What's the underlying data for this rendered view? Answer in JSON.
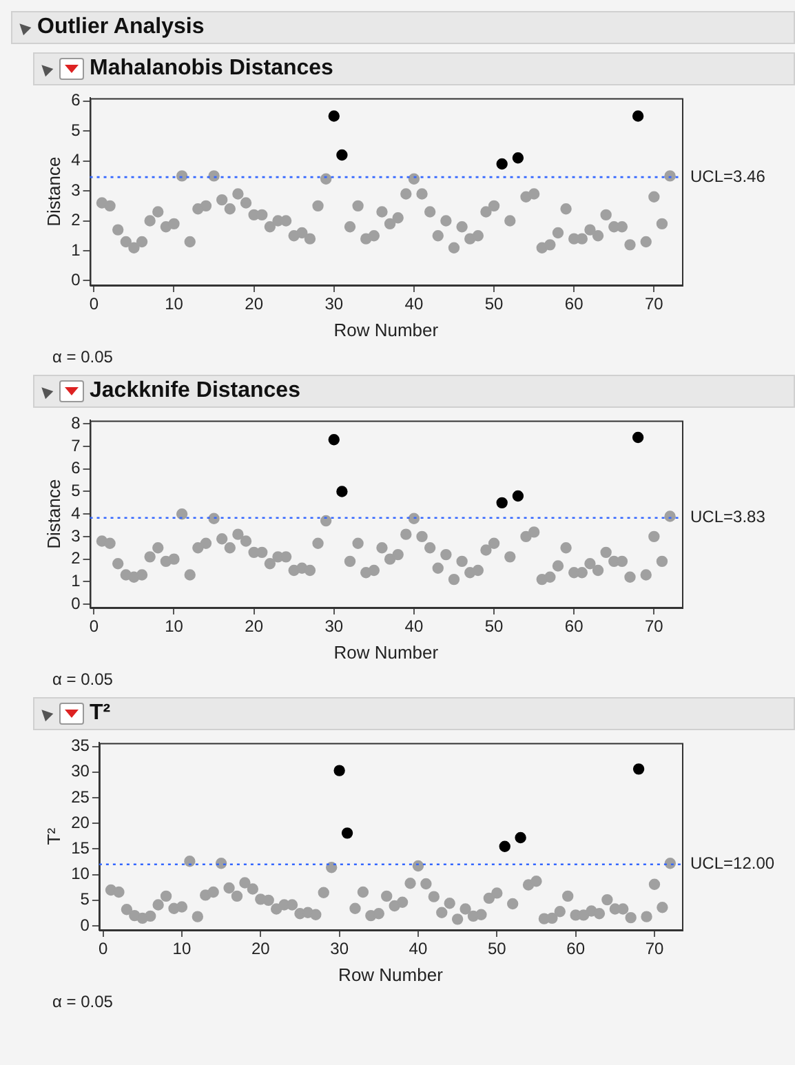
{
  "chart_data": [
    {
      "type": "scatter",
      "title": "Outlier Analysis",
      "subtitle": "Mahalanobis Distances",
      "xlabel": "Row Number",
      "ylabel": "Distance",
      "marker": "circle",
      "legend": false,
      "x": [
        1,
        2,
        3,
        4,
        5,
        6,
        7,
        8,
        9,
        10,
        11,
        12,
        13,
        14,
        15,
        16,
        17,
        18,
        19,
        20,
        21,
        22,
        23,
        24,
        25,
        26,
        27,
        28,
        29,
        30,
        31,
        32,
        33,
        34,
        35,
        36,
        37,
        38,
        39,
        40,
        41,
        42,
        43,
        44,
        45,
        46,
        47,
        48,
        49,
        50,
        51,
        52,
        53,
        54,
        55,
        56,
        57,
        58,
        59,
        60,
        61,
        62,
        63,
        64,
        65,
        66,
        67,
        68,
        69,
        70,
        71,
        72
      ],
      "values": [
        2.6,
        2.5,
        1.7,
        1.3,
        1.1,
        1.3,
        2.0,
        2.3,
        1.8,
        1.9,
        3.5,
        1.3,
        2.4,
        2.5,
        3.5,
        2.7,
        2.4,
        2.9,
        2.6,
        2.2,
        2.2,
        1.8,
        2.0,
        2.0,
        1.5,
        1.6,
        1.4,
        2.5,
        3.4,
        5.5,
        4.2,
        1.8,
        2.5,
        1.4,
        1.5,
        2.3,
        1.9,
        2.1,
        2.9,
        3.4,
        2.9,
        2.3,
        1.5,
        2.0,
        1.1,
        1.8,
        1.4,
        1.5,
        2.3,
        2.5,
        3.9,
        2.0,
        4.1,
        2.8,
        2.9,
        1.1,
        1.2,
        1.6,
        2.4,
        1.4,
        1.4,
        1.7,
        1.5,
        2.2,
        1.8,
        1.8,
        1.2,
        5.5,
        1.3,
        2.8,
        1.9,
        3.5
      ],
      "colors": [
        "#a0a0a0",
        "#a0a0a0",
        "#a0a0a0",
        "#a0a0a0",
        "#a0a0a0",
        "#a0a0a0",
        "#a0a0a0",
        "#a0a0a0",
        "#a0a0a0",
        "#a0a0a0",
        "#a0a0a0",
        "#a0a0a0",
        "#a0a0a0",
        "#a0a0a0",
        "#a0a0a0",
        "#a0a0a0",
        "#a0a0a0",
        "#a0a0a0",
        "#a0a0a0",
        "#a0a0a0",
        "#a0a0a0",
        "#a0a0a0",
        "#a0a0a0",
        "#a0a0a0",
        "#a0a0a0",
        "#a0a0a0",
        "#a0a0a0",
        "#a0a0a0",
        "#a0a0a0",
        "#000000",
        "#000000",
        "#a0a0a0",
        "#a0a0a0",
        "#a0a0a0",
        "#a0a0a0",
        "#a0a0a0",
        "#a0a0a0",
        "#a0a0a0",
        "#a0a0a0",
        "#a0a0a0",
        "#a0a0a0",
        "#a0a0a0",
        "#a0a0a0",
        "#a0a0a0",
        "#a0a0a0",
        "#a0a0a0",
        "#a0a0a0",
        "#a0a0a0",
        "#a0a0a0",
        "#a0a0a0",
        "#000000",
        "#a0a0a0",
        "#000000",
        "#a0a0a0",
        "#a0a0a0",
        "#a0a0a0",
        "#a0a0a0",
        "#a0a0a0",
        "#a0a0a0",
        "#a0a0a0",
        "#a0a0a0",
        "#a0a0a0",
        "#a0a0a0",
        "#a0a0a0",
        "#a0a0a0",
        "#a0a0a0",
        "#a0a0a0",
        "#000000",
        "#a0a0a0",
        "#a0a0a0",
        "#a0a0a0",
        "#a0a0a0"
      ],
      "xlim": [
        -0.5,
        73.5
      ],
      "xticks": [
        0,
        10,
        20,
        30,
        40,
        50,
        60,
        70
      ],
      "ylim": [
        -0.15,
        6.1
      ],
      "yticks": [
        0,
        1,
        2,
        3,
        4,
        5,
        6
      ],
      "ref_lines": [
        {
          "axis": "y",
          "value": 3.46,
          "label": "UCL=3.46",
          "color": "#3366ff",
          "line_style": "dotted"
        }
      ],
      "annotations": [
        "α = 0.05"
      ]
    },
    {
      "type": "scatter",
      "title": "Jackknife Distances",
      "xlabel": "Row Number",
      "ylabel": "Distance",
      "marker": "circle",
      "legend": false,
      "x": [
        1,
        2,
        3,
        4,
        5,
        6,
        7,
        8,
        9,
        10,
        11,
        12,
        13,
        14,
        15,
        16,
        17,
        18,
        19,
        20,
        21,
        22,
        23,
        24,
        25,
        26,
        27,
        28,
        29,
        30,
        31,
        32,
        33,
        34,
        35,
        36,
        37,
        38,
        39,
        40,
        41,
        42,
        43,
        44,
        45,
        46,
        47,
        48,
        49,
        50,
        51,
        52,
        53,
        54,
        55,
        56,
        57,
        58,
        59,
        60,
        61,
        62,
        63,
        64,
        65,
        66,
        67,
        68,
        69,
        70,
        71,
        72
      ],
      "values": [
        2.8,
        2.7,
        1.8,
        1.3,
        1.2,
        1.3,
        2.1,
        2.5,
        1.9,
        2.0,
        4.0,
        1.3,
        2.5,
        2.7,
        3.8,
        2.9,
        2.5,
        3.1,
        2.8,
        2.3,
        2.3,
        1.8,
        2.1,
        2.1,
        1.5,
        1.6,
        1.5,
        2.7,
        3.7,
        7.3,
        5.0,
        1.9,
        2.7,
        1.4,
        1.5,
        2.5,
        2.0,
        2.2,
        3.1,
        3.8,
        3.0,
        2.5,
        1.6,
        2.2,
        1.1,
        1.9,
        1.4,
        1.5,
        2.4,
        2.7,
        4.5,
        2.1,
        4.8,
        3.0,
        3.2,
        1.1,
        1.2,
        1.7,
        2.5,
        1.4,
        1.4,
        1.8,
        1.5,
        2.3,
        1.9,
        1.9,
        1.2,
        7.4,
        1.3,
        3.0,
        1.9,
        3.9
      ],
      "colors": [
        "#a0a0a0",
        "#a0a0a0",
        "#a0a0a0",
        "#a0a0a0",
        "#a0a0a0",
        "#a0a0a0",
        "#a0a0a0",
        "#a0a0a0",
        "#a0a0a0",
        "#a0a0a0",
        "#a0a0a0",
        "#a0a0a0",
        "#a0a0a0",
        "#a0a0a0",
        "#a0a0a0",
        "#a0a0a0",
        "#a0a0a0",
        "#a0a0a0",
        "#a0a0a0",
        "#a0a0a0",
        "#a0a0a0",
        "#a0a0a0",
        "#a0a0a0",
        "#a0a0a0",
        "#a0a0a0",
        "#a0a0a0",
        "#a0a0a0",
        "#a0a0a0",
        "#a0a0a0",
        "#000000",
        "#000000",
        "#a0a0a0",
        "#a0a0a0",
        "#a0a0a0",
        "#a0a0a0",
        "#a0a0a0",
        "#a0a0a0",
        "#a0a0a0",
        "#a0a0a0",
        "#a0a0a0",
        "#a0a0a0",
        "#a0a0a0",
        "#a0a0a0",
        "#a0a0a0",
        "#a0a0a0",
        "#a0a0a0",
        "#a0a0a0",
        "#a0a0a0",
        "#a0a0a0",
        "#a0a0a0",
        "#000000",
        "#a0a0a0",
        "#000000",
        "#a0a0a0",
        "#a0a0a0",
        "#a0a0a0",
        "#a0a0a0",
        "#a0a0a0",
        "#a0a0a0",
        "#a0a0a0",
        "#a0a0a0",
        "#a0a0a0",
        "#a0a0a0",
        "#a0a0a0",
        "#a0a0a0",
        "#a0a0a0",
        "#a0a0a0",
        "#000000",
        "#a0a0a0",
        "#a0a0a0",
        "#a0a0a0",
        "#a0a0a0"
      ],
      "xlim": [
        -0.5,
        73.5
      ],
      "xticks": [
        0,
        10,
        20,
        30,
        40,
        50,
        60,
        70
      ],
      "ylim": [
        -0.15,
        8.15
      ],
      "yticks": [
        0,
        1,
        2,
        3,
        4,
        5,
        6,
        7,
        8
      ],
      "ref_lines": [
        {
          "axis": "y",
          "value": 3.83,
          "label": "UCL=3.83",
          "color": "#3366ff",
          "line_style": "dotted"
        }
      ],
      "annotations": [
        "α = 0.05"
      ]
    },
    {
      "type": "scatter",
      "title": "T²",
      "xlabel": "Row Number",
      "ylabel": "T²",
      "marker": "circle",
      "legend": false,
      "x": [
        1,
        2,
        3,
        4,
        5,
        6,
        7,
        8,
        9,
        10,
        11,
        12,
        13,
        14,
        15,
        16,
        17,
        18,
        19,
        20,
        21,
        22,
        23,
        24,
        25,
        26,
        27,
        28,
        29,
        30,
        31,
        32,
        33,
        34,
        35,
        36,
        37,
        38,
        39,
        40,
        41,
        42,
        43,
        44,
        45,
        46,
        47,
        48,
        49,
        50,
        51,
        52,
        53,
        54,
        55,
        56,
        57,
        58,
        59,
        60,
        61,
        62,
        63,
        64,
        65,
        66,
        67,
        68,
        69,
        70,
        71,
        72
      ],
      "values": [
        7.0,
        6.6,
        3.2,
        2.0,
        1.5,
        1.9,
        4.1,
        5.8,
        3.4,
        3.7,
        12.6,
        1.8,
        6.0,
        6.6,
        12.2,
        7.4,
        5.8,
        8.4,
        7.2,
        5.2,
        5.0,
        3.3,
        4.1,
        4.1,
        2.4,
        2.6,
        2.2,
        6.5,
        11.4,
        30.3,
        18.1,
        3.4,
        6.6,
        2.0,
        2.4,
        5.8,
        3.9,
        4.6,
        8.3,
        11.7,
        8.2,
        5.7,
        2.6,
        4.4,
        1.3,
        3.3,
        1.9,
        2.2,
        5.4,
        6.4,
        15.5,
        4.3,
        17.2,
        8.0,
        8.7,
        1.4,
        1.5,
        2.8,
        5.8,
        2.1,
        2.1,
        2.9,
        2.4,
        5.1,
        3.3,
        3.3,
        1.6,
        30.6,
        1.8,
        8.1,
        3.6,
        12.2
      ],
      "colors": [
        "#a0a0a0",
        "#a0a0a0",
        "#a0a0a0",
        "#a0a0a0",
        "#a0a0a0",
        "#a0a0a0",
        "#a0a0a0",
        "#a0a0a0",
        "#a0a0a0",
        "#a0a0a0",
        "#a0a0a0",
        "#a0a0a0",
        "#a0a0a0",
        "#a0a0a0",
        "#a0a0a0",
        "#a0a0a0",
        "#a0a0a0",
        "#a0a0a0",
        "#a0a0a0",
        "#a0a0a0",
        "#a0a0a0",
        "#a0a0a0",
        "#a0a0a0",
        "#a0a0a0",
        "#a0a0a0",
        "#a0a0a0",
        "#a0a0a0",
        "#a0a0a0",
        "#a0a0a0",
        "#000000",
        "#000000",
        "#a0a0a0",
        "#a0a0a0",
        "#a0a0a0",
        "#a0a0a0",
        "#a0a0a0",
        "#a0a0a0",
        "#a0a0a0",
        "#a0a0a0",
        "#a0a0a0",
        "#a0a0a0",
        "#a0a0a0",
        "#a0a0a0",
        "#a0a0a0",
        "#a0a0a0",
        "#a0a0a0",
        "#a0a0a0",
        "#a0a0a0",
        "#a0a0a0",
        "#a0a0a0",
        "#000000",
        "#a0a0a0",
        "#000000",
        "#a0a0a0",
        "#a0a0a0",
        "#a0a0a0",
        "#a0a0a0",
        "#a0a0a0",
        "#a0a0a0",
        "#a0a0a0",
        "#a0a0a0",
        "#a0a0a0",
        "#a0a0a0",
        "#a0a0a0",
        "#a0a0a0",
        "#a0a0a0",
        "#a0a0a0",
        "#000000",
        "#a0a0a0",
        "#a0a0a0",
        "#a0a0a0",
        "#a0a0a0"
      ],
      "xlim": [
        -0.5,
        73.5
      ],
      "xticks": [
        0,
        10,
        20,
        30,
        40,
        50,
        60,
        70
      ],
      "ylim": [
        -0.8,
        35.7
      ],
      "yticks": [
        0,
        5,
        10,
        15,
        20,
        25,
        30,
        35
      ],
      "ref_lines": [
        {
          "axis": "y",
          "value": 12.0,
          "label": "UCL=12.00",
          "color": "#3366ff",
          "line_style": "dotted"
        }
      ],
      "annotations": [
        "α = 0.05"
      ]
    }
  ]
}
